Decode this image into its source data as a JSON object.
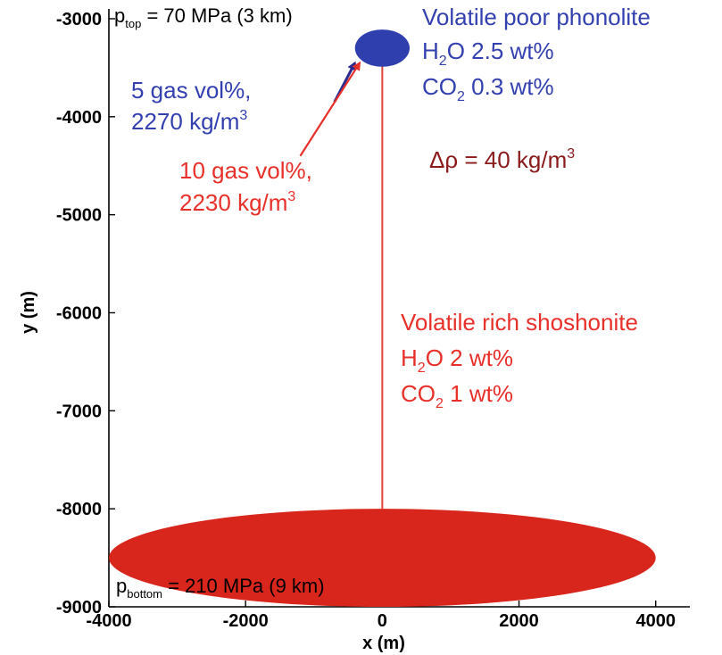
{
  "colors": {
    "axis": "#000000",
    "top_chamber": "#2f3fae",
    "bottom_chamber": "#d9261c",
    "conduit": "#e0443a",
    "arrow_blue": "#2a2a8e",
    "arrow_red": "#e8302a",
    "text_blue": "#3340b0",
    "text_red": "#e8302a",
    "text_darkred": "#8b1a1a"
  },
  "chart_data": {
    "type": "diagram",
    "xlabel": "x (m)",
    "ylabel": "y (m)",
    "xlim": [
      -4000,
      4500
    ],
    "ylim": [
      -9000,
      -2900
    ],
    "x_ticks": [
      -4000,
      -2000,
      0,
      2000,
      4000
    ],
    "y_ticks": [
      -3000,
      -4000,
      -5000,
      -6000,
      -7000,
      -8000,
      -9000
    ],
    "top_chamber": {
      "cx": 0,
      "cy": -3300,
      "rx": 400,
      "ry": 190
    },
    "bottom_chamber": {
      "cx": 0,
      "cy": -8500,
      "rx": 4000,
      "ry": 500
    },
    "conduit": {
      "x": 0,
      "y_from": -3300,
      "y_to": -8000
    },
    "arrows": [
      {
        "color": "arrow_blue",
        "from": [
          -700,
          -3850
        ],
        "to": [
          -400,
          -3450
        ]
      },
      {
        "color": "arrow_red",
        "from": [
          -1200,
          -4400
        ],
        "to": [
          -330,
          -3450
        ]
      }
    ]
  },
  "labels": {
    "p_top": {
      "base": "p",
      "sub": "top",
      "rest": " = 70 MPa (3 km)"
    },
    "p_bottom": {
      "base": "p",
      "sub": "bottom",
      "rest": " = 210 MPa (9 km)"
    },
    "phonolite": {
      "title": "Volatile poor phonolite",
      "h2o_pre": "H",
      "h2o_sub": "2",
      "h2o_post": "O 2.5 wt%",
      "co2_pre": "CO",
      "co2_sub": "2",
      "co2_post": " 0.3 wt%"
    },
    "shoshonite": {
      "title": "Volatile rich shoshonite",
      "h2o_pre": "H",
      "h2o_sub": "2",
      "h2o_post": "O 2 wt%",
      "co2_pre": "CO",
      "co2_sub": "2",
      "co2_post": " 1 wt%"
    },
    "gas5": {
      "line1": "5 gas vol%,",
      "line2": "2270 kg/m",
      "sup": "3"
    },
    "gas10": {
      "line1": "10 gas vol%,",
      "line2": "2230 kg/m",
      "sup": "3"
    },
    "delta_rho": {
      "text": "Δρ = 40 kg/m",
      "sup": "3"
    }
  }
}
